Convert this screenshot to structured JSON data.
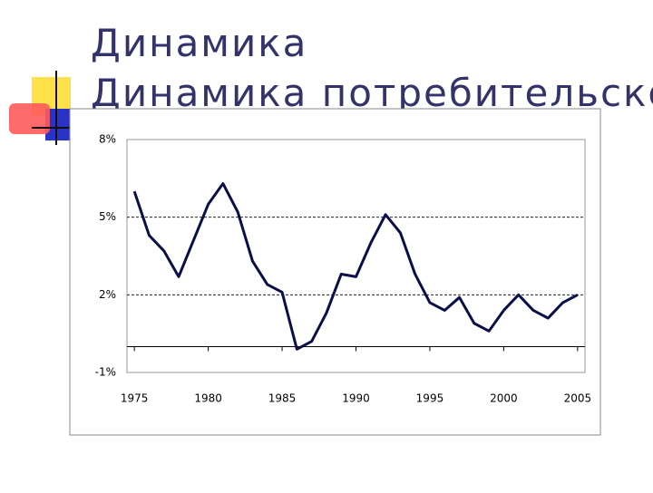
{
  "title": "Динамика потребительской",
  "chart_data": {
    "type": "line",
    "x": [
      1975,
      1976,
      1977,
      1978,
      1979,
      1980,
      1981,
      1982,
      1983,
      1984,
      1985,
      1986,
      1987,
      1988,
      1989,
      1990,
      1991,
      1992,
      1993,
      1994,
      1995,
      1996,
      1997,
      1998,
      1999,
      2000,
      2001,
      2002,
      2003,
      2004,
      2005
    ],
    "series": [
      {
        "color": "#0a0f4a",
        "values": [
          6.0,
          4.3,
          3.7,
          2.7,
          4.1,
          5.5,
          6.3,
          5.2,
          3.3,
          2.4,
          2.1,
          -0.1,
          0.2,
          1.3,
          2.8,
          2.7,
          4.0,
          5.1,
          4.4,
          2.8,
          1.7,
          1.4,
          1.9,
          0.9,
          0.6,
          1.4,
          2.0,
          1.4,
          1.1,
          1.7,
          2.0
        ]
      }
    ],
    "xlim": [
      1974.5,
      2005.5
    ],
    "xticks": [
      1975,
      1980,
      1985,
      1990,
      1995,
      2000,
      2005
    ],
    "ylim": [
      -1,
      8
    ],
    "yticks": [
      {
        "value": -1,
        "label": "-1%"
      },
      {
        "value": 2,
        "label": "2%"
      },
      {
        "value": 5,
        "label": "5%"
      },
      {
        "value": 8,
        "label": "8%"
      }
    ],
    "grid": true
  }
}
